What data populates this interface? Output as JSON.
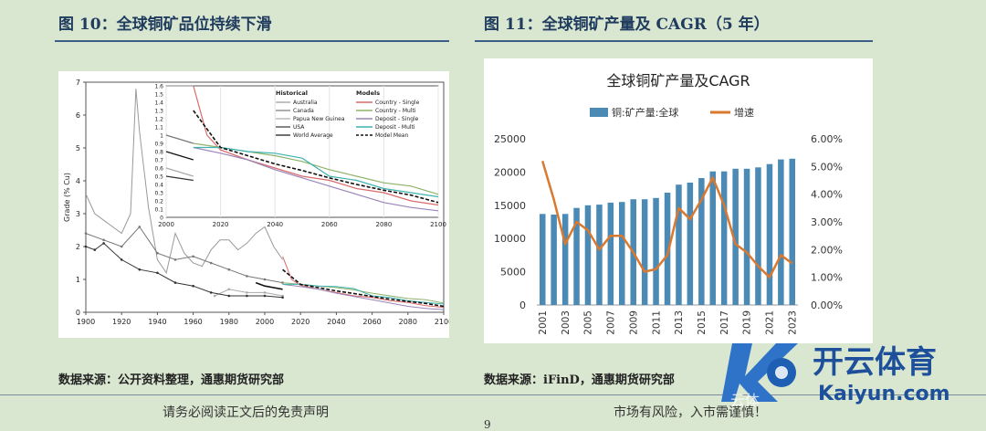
{
  "left": {
    "figure_title": "图 10：全球铜矿品位持续下滑",
    "source": "数据来源：公开资料整理，通惠期货研究部"
  },
  "right": {
    "figure_title": "图 11：全球铜矿产量及 CAGR（5 年）",
    "source": "数据来源：iFinD，通惠期货研究部"
  },
  "footer": {
    "disclaimer": "请务必阅读正文后的免责声明",
    "risk": "市场有风险，入市需谨慎！",
    "page_number": "9"
  },
  "watermark": {
    "brand": "开云体育",
    "url": "Kaiyun.com",
    "sub": "云体"
  },
  "chart_data": [
    {
      "type": "line",
      "title": "",
      "ylabel": "Grade (% Cu)",
      "xlabel": "",
      "xlim": [
        1900,
        2100
      ],
      "ylim": [
        0,
        7
      ],
      "x_ticks": [
        "1900",
        "1920",
        "1940",
        "1960",
        "1980",
        "2000",
        "2020",
        "2040",
        "2060",
        "2080",
        "2100"
      ],
      "y_ticks": [
        "0",
        "1",
        "2",
        "3",
        "4",
        "5",
        "6",
        "7"
      ],
      "legend": {
        "historical_title": "Historical",
        "models_title": "Models",
        "historical": [
          "Australia",
          "Canada",
          "Papua New Guinea",
          "USA",
          "World Average"
        ],
        "models": [
          "Country - Single",
          "Country - Multi",
          "Deposit - Single",
          "Deposit - Multi",
          "Model Mean"
        ]
      },
      "series": [
        {
          "name": "Australia",
          "color": "#999999",
          "x": [
            1900,
            1905,
            1910,
            1915,
            1920,
            1925,
            1928,
            1930,
            1935,
            1940,
            1945,
            1950,
            1955,
            1960,
            1965,
            1970,
            1975,
            1980,
            1985,
            1990,
            1995,
            2000,
            2005,
            2010
          ],
          "values": [
            3.6,
            3.0,
            2.8,
            2.6,
            2.4,
            3.0,
            6.8,
            5.5,
            3.2,
            1.6,
            1.2,
            2.4,
            1.8,
            1.5,
            1.4,
            1.9,
            2.2,
            2.2,
            1.9,
            2.1,
            2.4,
            2.6,
            2.0,
            1.6
          ]
        },
        {
          "name": "Canada",
          "color": "#777777",
          "x": [
            1900,
            1910,
            1920,
            1930,
            1940,
            1950,
            1960,
            1970,
            1980,
            1990,
            2000,
            2010
          ],
          "values": [
            2.4,
            2.2,
            2.0,
            2.6,
            1.8,
            1.6,
            1.7,
            1.5,
            1.3,
            1.1,
            1.0,
            0.9
          ]
        },
        {
          "name": "Papua New Guinea",
          "color": "#aaaaaa",
          "x": [
            1972,
            1980,
            1990,
            2000,
            2010
          ],
          "values": [
            0.5,
            0.7,
            0.6,
            0.6,
            0.5
          ]
        },
        {
          "name": "USA",
          "color": "#333333",
          "x": [
            1900,
            1905,
            1910,
            1920,
            1930,
            1940,
            1950,
            1960,
            1970,
            1980,
            1990,
            2000,
            2010
          ],
          "values": [
            2.0,
            1.9,
            2.1,
            1.6,
            1.3,
            1.2,
            0.9,
            0.8,
            0.6,
            0.5,
            0.5,
            0.5,
            0.45
          ]
        },
        {
          "name": "World Average",
          "color": "#111111",
          "x": [
            1995,
            2000,
            2005,
            2010
          ],
          "values": [
            0.9,
            0.8,
            0.75,
            0.7
          ]
        },
        {
          "name": "Country - Single",
          "color": "#d96b6b",
          "x": [
            2010,
            2015,
            2020,
            2030,
            2040,
            2050,
            2060,
            2070,
            2080,
            2090,
            2100
          ],
          "values": [
            1.7,
            1.0,
            0.82,
            0.7,
            0.6,
            0.5,
            0.45,
            0.35,
            0.3,
            0.2,
            0.15
          ]
        },
        {
          "name": "Country - Multi",
          "color": "#8fb36a",
          "x": [
            2010,
            2020,
            2030,
            2040,
            2050,
            2060,
            2070,
            2080,
            2090,
            2100
          ],
          "values": [
            0.9,
            0.85,
            0.8,
            0.75,
            0.68,
            0.58,
            0.5,
            0.42,
            0.38,
            0.28
          ]
        },
        {
          "name": "Deposit - Single",
          "color": "#9b85b8",
          "x": [
            2010,
            2020,
            2030,
            2040,
            2050,
            2060,
            2070,
            2080,
            2090,
            2100
          ],
          "values": [
            0.85,
            0.78,
            0.7,
            0.58,
            0.48,
            0.38,
            0.28,
            0.18,
            0.12,
            0.08
          ]
        },
        {
          "name": "Deposit - Multi",
          "color": "#3fb3b0",
          "x": [
            2010,
            2020,
            2030,
            2040,
            2050,
            2060,
            2070,
            2080,
            2090,
            2100
          ],
          "values": [
            0.85,
            0.85,
            0.8,
            0.78,
            0.72,
            0.5,
            0.45,
            0.35,
            0.3,
            0.25
          ]
        },
        {
          "name": "Model Mean",
          "color": "#111111",
          "x": [
            2010,
            2020,
            2030,
            2040,
            2050,
            2060,
            2070,
            2080,
            2090,
            2100
          ],
          "values": [
            1.3,
            0.85,
            0.75,
            0.65,
            0.57,
            0.48,
            0.4,
            0.33,
            0.27,
            0.18
          ]
        }
      ],
      "inset": {
        "xlim": [
          2000,
          2100
        ],
        "ylim": [
          0,
          1.6
        ],
        "x_ticks": [
          "2000",
          "2020",
          "2040",
          "2060",
          "2080",
          "2100"
        ],
        "y_ticks": [
          "0",
          "0.1",
          "0.2",
          "0.3",
          "0.4",
          "0.5",
          "0.6",
          "0.7",
          "0.8",
          "0.9",
          "1",
          "1.1",
          "1.2",
          "1.3",
          "1.4",
          "1.5",
          "1.6"
        ]
      }
    },
    {
      "type": "bar",
      "title": "全球铜矿产量及CAGR",
      "legend": [
        "铜:矿产量:全球",
        "增速"
      ],
      "categories": [
        "2001",
        "2002",
        "2003",
        "2004",
        "2005",
        "2006",
        "2007",
        "2008",
        "2009",
        "2010",
        "2011",
        "2012",
        "2013",
        "2014",
        "2015",
        "2016",
        "2017",
        "2018",
        "2019",
        "2020",
        "2021",
        "2022",
        "2023"
      ],
      "x_tick_labels": [
        "2001",
        "2003",
        "2005",
        "2007",
        "2009",
        "2011",
        "2013",
        "2015",
        "2017",
        "2019",
        "2021",
        "2023"
      ],
      "series": [
        {
          "name": "铜:矿产量:全球",
          "axis": "left",
          "type": "bar",
          "color": "#4a8ab5",
          "values": [
            13700,
            13600,
            13700,
            14600,
            15000,
            15100,
            15400,
            15500,
            15900,
            15900,
            16100,
            16900,
            18100,
            18400,
            19100,
            20100,
            20100,
            20500,
            20500,
            20700,
            21200,
            21900,
            22000
          ]
        },
        {
          "name": "增速",
          "axis": "right",
          "type": "line",
          "color": "#d9782f",
          "values": [
            0.052,
            0.038,
            0.022,
            0.03,
            0.027,
            0.02,
            0.025,
            0.025,
            0.019,
            0.012,
            0.013,
            0.018,
            0.035,
            0.031,
            0.038,
            0.046,
            0.036,
            0.022,
            0.019,
            0.014,
            0.01,
            0.018,
            0.015
          ]
        }
      ],
      "ylim_left": [
        0,
        25000
      ],
      "ylim_right": [
        0,
        0.06
      ],
      "y_ticks_left": [
        "0",
        "5000",
        "10000",
        "15000",
        "20000",
        "25000"
      ],
      "y_ticks_right": [
        "0.00%",
        "1.00%",
        "2.00%",
        "3.00%",
        "4.00%",
        "5.00%",
        "6.00%"
      ]
    }
  ]
}
